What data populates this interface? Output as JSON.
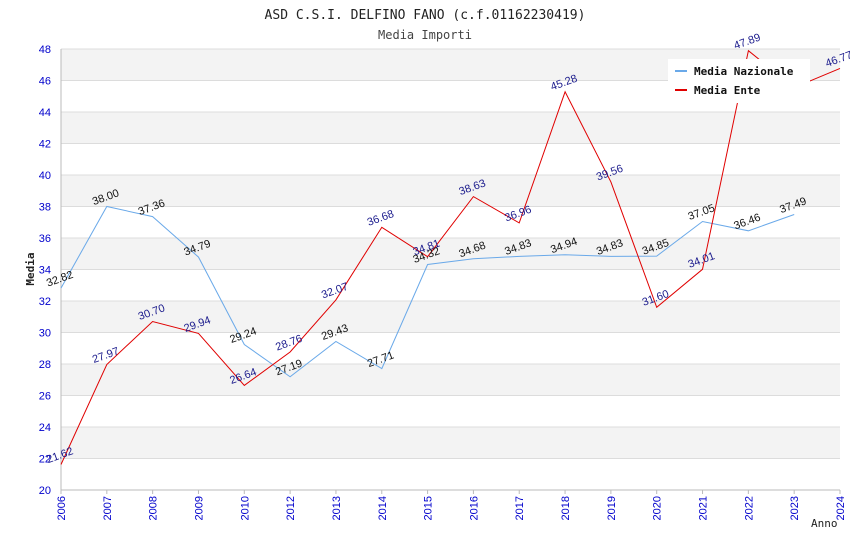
{
  "chart_data": {
    "type": "line",
    "title": "ASD C.S.I. DELFINO FANO (c.f.01162230419)",
    "subtitle": "Media Importi",
    "xlabel": "Anno",
    "ylabel": "Media",
    "ylim": [
      20,
      48
    ],
    "yticks": [
      "20",
      "22",
      "24",
      "26",
      "28",
      "30",
      "32",
      "34",
      "36",
      "38",
      "40",
      "42",
      "44",
      "46",
      "48"
    ],
    "categories": [
      "2006",
      "2007",
      "2008",
      "2009",
      "2010",
      "2012",
      "2013",
      "2014",
      "2015",
      "2016",
      "2017",
      "2018",
      "2019",
      "2020",
      "2021",
      "2022",
      "2023",
      "2024"
    ],
    "legend_position": "top-right",
    "grid": true,
    "series": [
      {
        "name": "Media Nazionale",
        "color": "#6aa9e9",
        "values": [
          32.82,
          38.0,
          37.36,
          34.79,
          29.24,
          27.19,
          29.43,
          27.71,
          34.32,
          34.68,
          34.83,
          34.94,
          34.83,
          34.85,
          37.05,
          36.46,
          37.49,
          null
        ],
        "labels": [
          "32.82",
          "38.00",
          "37.36",
          "34.79",
          "29.24",
          "27.19",
          "29.43",
          "27.71",
          "34.32",
          "34.68",
          "34.83",
          "34.94",
          "34.83",
          "34.85",
          "37.05",
          "36.46",
          "37.49",
          ""
        ]
      },
      {
        "name": "Media Ente",
        "color": "#e00000",
        "values": [
          21.62,
          27.97,
          30.7,
          29.94,
          26.64,
          28.76,
          32.07,
          36.68,
          34.81,
          38.63,
          36.96,
          45.28,
          39.56,
          31.6,
          34.01,
          47.89,
          45.55,
          46.77
        ],
        "labels": [
          "21.62",
          "27.97",
          "30.70",
          "29.94",
          "26.64",
          "28.76",
          "32.07",
          "36.68",
          "34.81",
          "38.63",
          "36.96",
          "45.28",
          "39.56",
          "31.60",
          "34.01",
          "47.89",
          "",
          "46.77"
        ]
      }
    ]
  }
}
